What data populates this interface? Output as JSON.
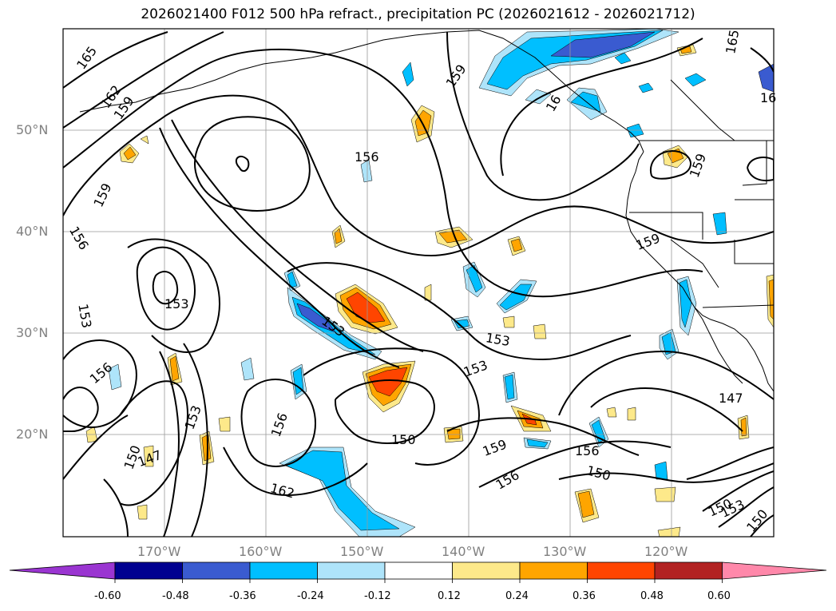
{
  "title": "2026021400 F012 500 hPa refract., precipitation PC (2026021612 - 2026021712)",
  "lat_labels": [
    "50°N",
    "40°N",
    "30°N",
    "20°N"
  ],
  "lon_labels": [
    "170°W",
    "160°W",
    "150°W",
    "140°W",
    "130°W",
    "120°W"
  ],
  "colorbar": {
    "ticks": [
      "-0.60",
      "-0.48",
      "-0.36",
      "-0.24",
      "-0.12",
      "0.12",
      "0.24",
      "0.36",
      "0.48",
      "0.60"
    ],
    "colors": [
      "#9a35d1",
      "#000090",
      "#3a5bd0",
      "#00bfff",
      "#aee4fa",
      "#ffffff",
      "#fde98a",
      "#ffa500",
      "#ff4500",
      "#b22222",
      "#ff88aa"
    ]
  },
  "contour_labels": [
    "165",
    "162",
    "159",
    "159",
    "156",
    "153",
    "153",
    "156",
    "153",
    "150",
    "147",
    "153",
    "156",
    "153",
    "162",
    "150",
    "153",
    "159",
    "156",
    "156",
    "150",
    "147",
    "150",
    "153",
    "150",
    "159",
    "156",
    "159",
    "159",
    "165",
    "16"
  ]
}
